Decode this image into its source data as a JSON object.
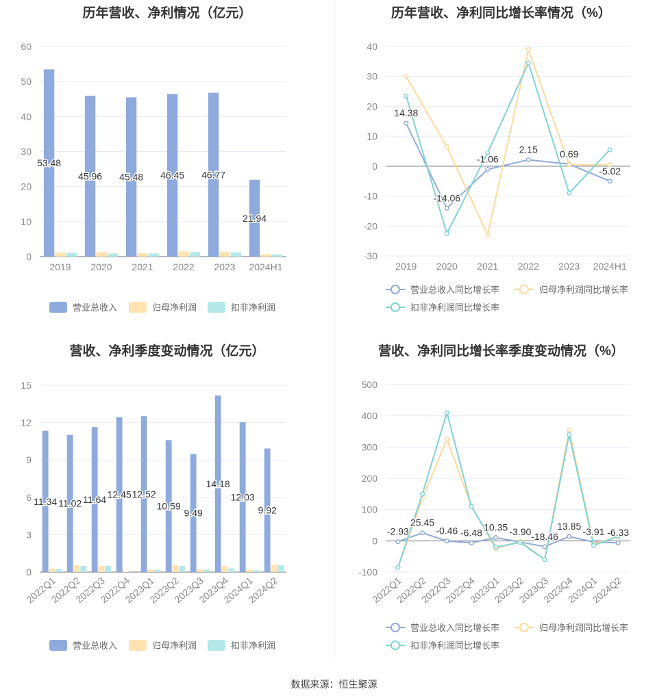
{
  "chart_data": [
    {
      "type": "bar",
      "title": "历年营收、净利情况（亿元）",
      "categories": [
        "2019",
        "2020",
        "2021",
        "2022",
        "2023",
        "2024H1"
      ],
      "ylim": [
        0,
        60
      ],
      "yticks": [
        "0",
        "10",
        "20",
        "30",
        "40",
        "50",
        "60"
      ],
      "grid": true,
      "legend_position": "bottom",
      "series": [
        {
          "name": "营业总收入",
          "color": "#8faadc",
          "values": [
            53.48,
            45.96,
            45.48,
            46.45,
            46.77,
            21.94
          ],
          "labels": [
            "53.48",
            "45.96",
            "45.48",
            "46.45",
            "46.77",
            "21.94"
          ]
        },
        {
          "name": "归母净利润",
          "color": "#ffe3b0",
          "values": [
            1.2,
            1.3,
            1.0,
            1.5,
            1.4,
            0.7
          ]
        },
        {
          "name": "扣非净利润",
          "color": "#b5e8e8",
          "values": [
            1.1,
            0.9,
            0.9,
            1.3,
            1.2,
            0.6
          ]
        }
      ]
    },
    {
      "type": "line",
      "title": "历年营收、净利同比增长率情况（%）",
      "categories": [
        "2019",
        "2020",
        "2021",
        "2022",
        "2023",
        "2024H1"
      ],
      "ylim": [
        -30,
        40
      ],
      "yticks": [
        "-30",
        "-20",
        "-10",
        "0",
        "10",
        "20",
        "30",
        "40"
      ],
      "grid": true,
      "legend_position": "bottom",
      "series": [
        {
          "name": "营业总收入同比增长率",
          "color": "#8faadc",
          "values": [
            14.38,
            -14.06,
            -1.06,
            2.15,
            0.69,
            -5.02
          ],
          "labels": [
            "14.38",
            "-14.06",
            "-1.06",
            "2.15",
            "0.69",
            "-5.02"
          ]
        },
        {
          "name": "归母净利润同比增长率",
          "color": "#ffd99a",
          "values": [
            30,
            6.5,
            -23,
            39,
            0.5,
            0.5
          ]
        },
        {
          "name": "扣非净利润同比增长率",
          "color": "#7fd3d6",
          "values": [
            23.5,
            -22.5,
            4.5,
            34.5,
            -9,
            5.5
          ]
        }
      ]
    },
    {
      "type": "bar",
      "title": "营收、净利季度变动情况（亿元）",
      "categories": [
        "2022Q1",
        "2022Q2",
        "2022Q3",
        "2022Q4",
        "2023Q1",
        "2023Q2",
        "2023Q3",
        "2023Q4",
        "2024Q1",
        "2024Q2"
      ],
      "ylim": [
        0,
        15
      ],
      "yticks": [
        "0",
        "3",
        "6",
        "9",
        "12",
        "15"
      ],
      "grid": true,
      "legend_position": "bottom",
      "series": [
        {
          "name": "营业总收入",
          "color": "#8faadc",
          "values": [
            11.34,
            11.02,
            11.64,
            12.45,
            12.52,
            10.59,
            9.49,
            14.18,
            12.03,
            9.92
          ],
          "labels": [
            "11.34",
            "11.02",
            "11.64",
            "12.45",
            "12.52",
            "10.59",
            "9.49",
            "14.18",
            "12.03",
            "9.92"
          ]
        },
        {
          "name": "归母净利润",
          "color": "#ffe3b0",
          "values": [
            0.3,
            0.55,
            0.5,
            0.05,
            0.2,
            0.55,
            0.2,
            0.5,
            0.2,
            0.6
          ]
        },
        {
          "name": "扣非净利润",
          "color": "#b5e8e8",
          "values": [
            0.25,
            0.5,
            0.5,
            0.0,
            0.2,
            0.5,
            0.2,
            0.3,
            0.15,
            0.55
          ]
        }
      ]
    },
    {
      "type": "line",
      "title": "营收、净利同比增长率季度变动情况（%）",
      "categories": [
        "2022Q1",
        "2022Q2",
        "2022Q3",
        "2022Q4",
        "2023Q1",
        "2023Q2",
        "2023Q3",
        "2023Q4",
        "2024Q1",
        "2024Q2"
      ],
      "ylim": [
        -100,
        500
      ],
      "yticks": [
        "-100",
        "0",
        "100",
        "200",
        "300",
        "400",
        "500"
      ],
      "grid": true,
      "legend_position": "bottom",
      "series": [
        {
          "name": "营业总收入同比增长率",
          "color": "#8faadc",
          "values": [
            -2.93,
            25.45,
            -0.46,
            -6.48,
            10.35,
            -3.9,
            -18.46,
            13.85,
            -3.91,
            -6.33
          ],
          "labels": [
            "-2.93",
            "25.45",
            "-0.46",
            "-6.48",
            "10.35",
            "-3.90",
            "-18.46",
            "13.85",
            "-3.91",
            "-6.33"
          ]
        },
        {
          "name": "归母净利润同比增长率",
          "color": "#ffd99a",
          "values": [
            -85,
            135,
            325,
            112,
            -25,
            -2,
            -60,
            355,
            -10,
            12
          ]
        },
        {
          "name": "扣非净利润同比增长率",
          "color": "#7fd3d6",
          "values": [
            -85,
            150,
            410,
            110,
            -20,
            -5,
            -60,
            340,
            -15,
            15
          ]
        }
      ]
    }
  ],
  "footer": {
    "source": "数据来源：恒生聚源"
  }
}
